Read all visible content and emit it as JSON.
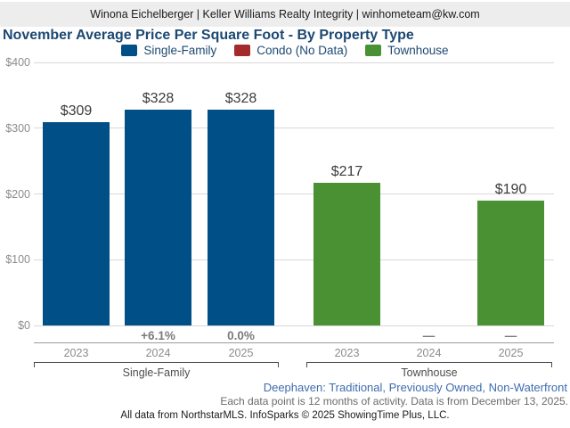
{
  "header": {
    "contact_line": "Winona Eichelberger | Keller Williams Realty Integrity | winhometeam@kw.com"
  },
  "title": "November Average Price Per Square Foot - By Property Type",
  "legend": [
    {
      "name": "single-family",
      "label": "Single-Family",
      "color": "#004f87"
    },
    {
      "name": "condo",
      "label": "Condo (No Data)",
      "color": "#a32b2b"
    },
    {
      "name": "townhouse",
      "label": "Townhouse",
      "color": "#4a9134"
    }
  ],
  "chart_data": {
    "type": "bar",
    "title": "November Average Price Per Square Foot - By Property Type",
    "xlabel": "",
    "ylabel": "",
    "ylim": [
      0,
      400
    ],
    "grid": true,
    "legend_position": "top",
    "yticks": [
      {
        "value": 400,
        "label": "$400"
      },
      {
        "value": 300,
        "label": "$300"
      },
      {
        "value": 200,
        "label": "$200"
      },
      {
        "value": 100,
        "label": "$100"
      },
      {
        "value": 0,
        "label": "$0"
      }
    ],
    "groups": [
      {
        "name": "Single-Family",
        "color": "#004f87",
        "bars": [
          {
            "year": "2023",
            "value": 309,
            "value_label": "$309",
            "change_label": ""
          },
          {
            "year": "2024",
            "value": 328,
            "value_label": "$328",
            "change_label": "+6.1%"
          },
          {
            "year": "2025",
            "value": 328,
            "value_label": "$328",
            "change_label": "0.0%"
          }
        ]
      },
      {
        "name": "Townhouse",
        "color": "#4a9134",
        "bars": [
          {
            "year": "2023",
            "value": 217,
            "value_label": "$217",
            "change_label": ""
          },
          {
            "year": "2024",
            "value": null,
            "value_label": "",
            "change_label": "—"
          },
          {
            "year": "2025",
            "value": 190,
            "value_label": "$190",
            "change_label": "—"
          }
        ]
      }
    ]
  },
  "footer": {
    "filter_line": "Deephaven: Traditional, Previously Owned, Non-Waterfront",
    "activity_line": "Each data point is 12 months of activity. Data is from December 13, 2025.",
    "source_line": "All data from NorthstarMLS. InfoSparks © 2025 ShowingTime Plus, LLC."
  }
}
